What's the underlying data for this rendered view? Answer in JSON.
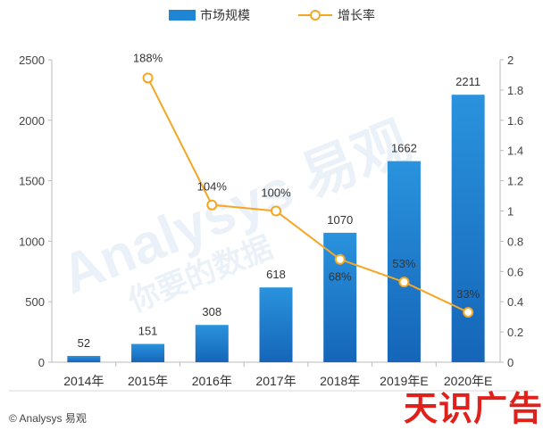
{
  "footer": {
    "copyright": "© Analysys 易观"
  },
  "brand": {
    "text": "天识广告"
  },
  "watermark": {
    "text": "Analysys 易观",
    "sub": "你要的数据"
  },
  "colors": {
    "bar": "#1f86d6",
    "bar_dark": "#1565b8",
    "line": "#f5a623",
    "axis": "#bbbbbb"
  },
  "chart_data": {
    "type": "bar",
    "categories": [
      "2014年",
      "2015年",
      "2016年",
      "2017年",
      "2018年",
      "2019年E",
      "2020年E"
    ],
    "series": [
      {
        "name": "市场规模",
        "type": "bar",
        "axis": "left",
        "values": [
          52,
          151,
          308,
          618,
          1070,
          1662,
          2211
        ],
        "labels": [
          "52",
          "151",
          "308",
          "618",
          "1070",
          "1662",
          "2211"
        ]
      },
      {
        "name": "增长率",
        "type": "line",
        "axis": "right",
        "values": [
          null,
          1.88,
          1.04,
          1.0,
          0.68,
          0.53,
          0.33
        ],
        "labels": [
          "",
          "188%",
          "104%",
          "100%",
          "68%",
          "53%",
          "33%"
        ]
      }
    ],
    "y_left": {
      "min": 0,
      "max": 2500,
      "ticks": [
        0,
        500,
        1000,
        1500,
        2000,
        2500
      ]
    },
    "y_right": {
      "min": 0,
      "max": 2,
      "ticks": [
        "0",
        "0.2",
        "0.4",
        "0.6",
        "0.8",
        "1",
        "1.2",
        "1.4",
        "1.6",
        "1.8",
        "2"
      ]
    },
    "legend": {
      "position": "top"
    },
    "grid": false
  }
}
